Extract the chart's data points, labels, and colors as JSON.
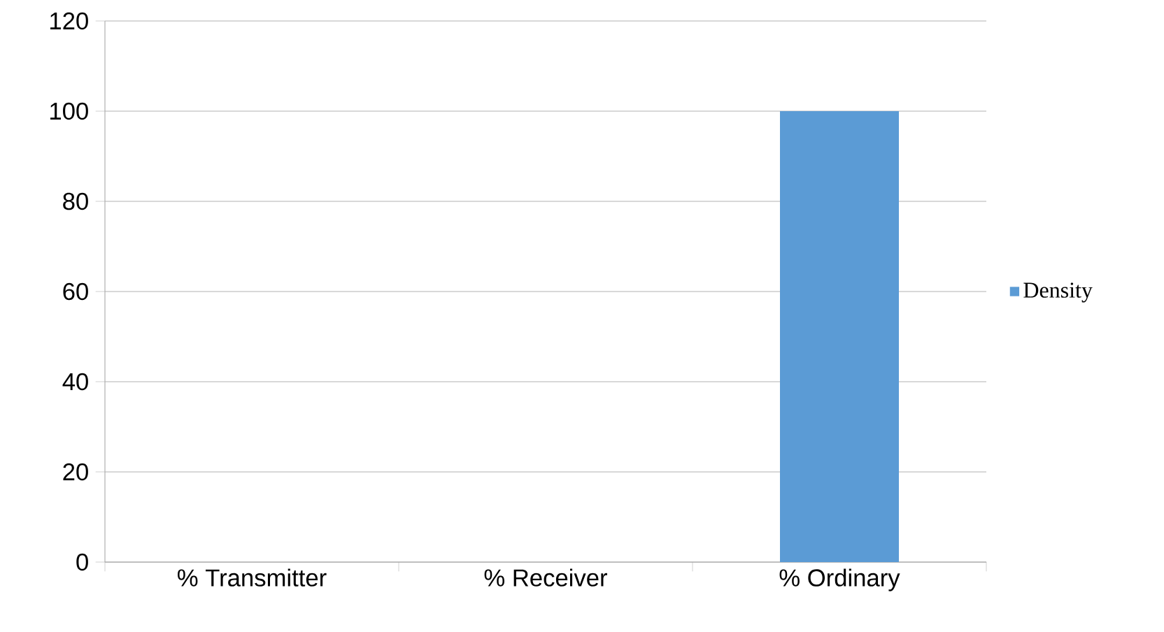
{
  "chart_data": {
    "type": "bar",
    "categories": [
      "% Transmitter",
      "% Receiver",
      "% Ordinary"
    ],
    "series": [
      {
        "name": "Density",
        "color": "#5b9bd5",
        "values": [
          0,
          0,
          100
        ]
      }
    ],
    "ylim": [
      0,
      120
    ],
    "yticks": [
      0,
      20,
      40,
      60,
      80,
      100,
      120
    ],
    "grid": "y",
    "legend": "right"
  }
}
